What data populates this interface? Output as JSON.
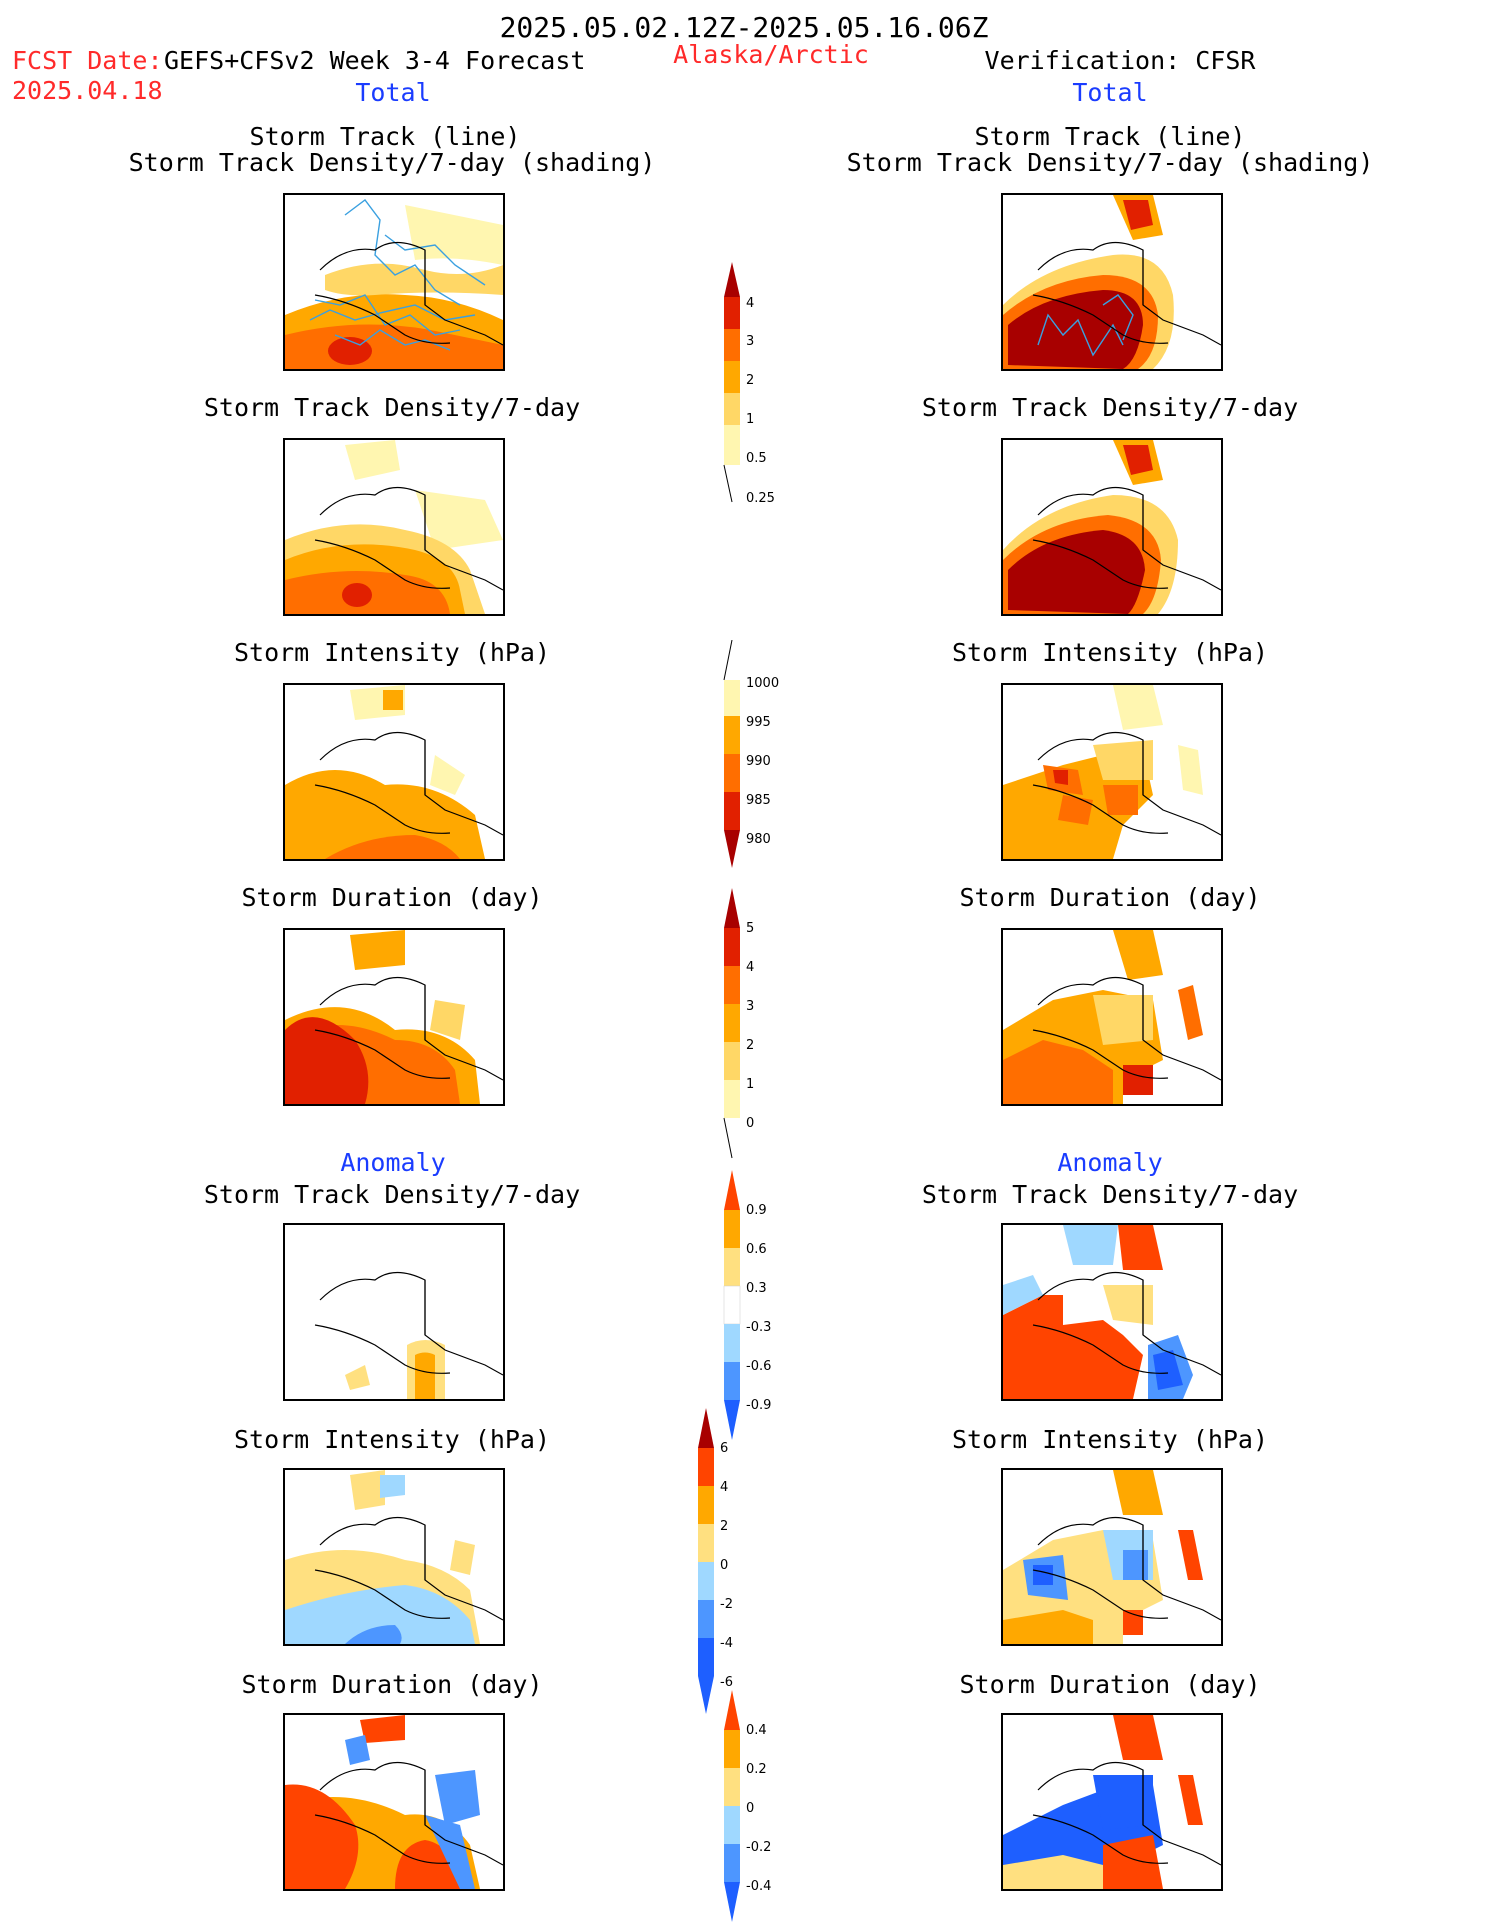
{
  "header": {
    "period": "2025.05.02.12Z-2025.05.16.06Z",
    "fcst_date_label": "FCST Date:",
    "fcst_date_value": "2025.04.18",
    "model_label": "GEFS+CFSv2 Week 3-4 Forecast",
    "region": "Alaska/Arctic",
    "verification_label": "Verification: CFSR"
  },
  "sections": {
    "total_left": "Total",
    "total_right": "Total",
    "anomaly_left": "Anomaly",
    "anomaly_right": "Anomaly"
  },
  "panel_titles": {
    "track_line": "Storm Track (line)",
    "track_shading": "Storm Track Density/7-day (shading)",
    "density": "Storm Track Density/7-day",
    "intensity": "Storm Intensity (hPa)",
    "duration": "Storm Duration (day)"
  },
  "colorbars": {
    "density_total": [
      "4",
      "3",
      "2",
      "1",
      "0.5",
      "0.25"
    ],
    "intensity_total": [
      "1000",
      "995",
      "990",
      "985",
      "980"
    ],
    "duration_total": [
      "5",
      "4",
      "3",
      "2",
      "1",
      "0"
    ],
    "density_anom": [
      "0.9",
      "0.6",
      "0.3",
      "-0.3",
      "-0.6",
      "-0.9"
    ],
    "intensity_anom": [
      "6",
      "4",
      "2",
      "0",
      "-2",
      "-4",
      "-6"
    ],
    "duration_anom": [
      "0.4",
      "0.2",
      "0",
      "-0.2",
      "-0.4"
    ]
  },
  "colors": {
    "title_red": "#ff2a2a",
    "section_blue": "#1a3cff",
    "warm_scale": [
      "#fff6b0",
      "#ffd766",
      "#ffa800",
      "#ff6e00",
      "#e12000",
      "#a80000"
    ],
    "anom_scale": [
      "#1e5fff",
      "#4d96ff",
      "#9fd8ff",
      "#ffffff",
      "#ffe080",
      "#ffa800",
      "#ff4400"
    ],
    "track_line": "#3aa0e0"
  }
}
